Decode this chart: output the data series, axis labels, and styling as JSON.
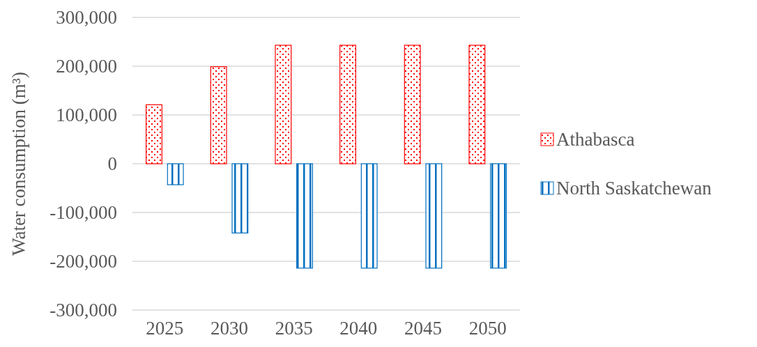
{
  "chart_data": {
    "type": "bar",
    "categories": [
      "2025",
      "2030",
      "2035",
      "2040",
      "2045",
      "2050"
    ],
    "series": [
      {
        "name": "Athabasca",
        "color": "#ff0000",
        "values": [
          121000,
          199000,
          243000,
          243000,
          243000,
          243000
        ]
      },
      {
        "name": "North Saskatchewan",
        "color": "#0070c0",
        "values": [
          -43000,
          -142000,
          -214000,
          -214000,
          -214000,
          -214000
        ]
      }
    ],
    "ylabel": "Water consumption (m³)",
    "ylim": [
      -300000,
      300000
    ],
    "yticks": [
      {
        "value": -300000,
        "label": "-300,000"
      },
      {
        "value": -200000,
        "label": "-200,000"
      },
      {
        "value": -100000,
        "label": "-100,000"
      },
      0,
      {
        "value": 100000,
        "label": "100,000"
      },
      {
        "value": 200000,
        "label": "200,000"
      },
      {
        "value": 300000,
        "label": "300,000"
      }
    ],
    "grid": "y",
    "legend": "right"
  }
}
